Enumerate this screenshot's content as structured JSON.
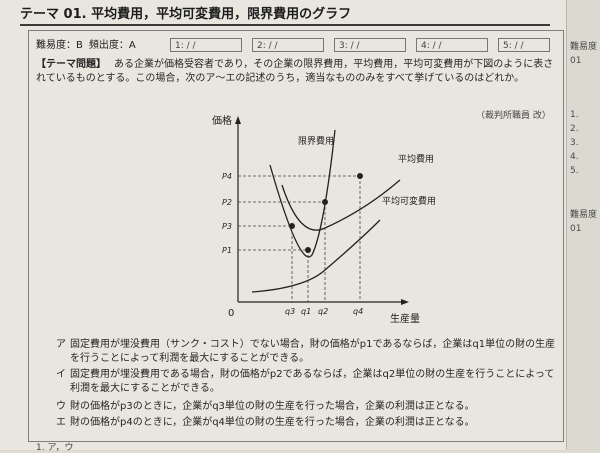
{
  "title": "テーマ 01. 平均費用，平均可変費用，限界費用のグラフ",
  "meta": {
    "difficulty_label": "難易度：B",
    "frequency_label": "頻出度：A",
    "check_boxes": [
      "1:  /  /",
      "2:  /  /",
      "3:  /  /",
      "4:  /  /",
      "5:  /  /"
    ]
  },
  "problem": {
    "tag": "【テーマ問題】",
    "text": "ある企業が価格受容者であり，その企業の限界費用，平均費用，平均可変費用が下図のように表されているものとする。この場合，次のア〜エの記述のうち，適当なもののみをすべて挙げているのはどれか。",
    "source": "（裁判所職員 改）"
  },
  "graph": {
    "y_axis_label": "価格",
    "x_axis_label": "生産量",
    "origin_label": "0",
    "curve_labels": {
      "mc": "限界費用",
      "ac": "平均費用",
      "avc": "平均可変費用"
    },
    "y_ticks": [
      "P4",
      "P2",
      "P3",
      "P1"
    ],
    "x_ticks": [
      "q3",
      "q1",
      "q2",
      "q4"
    ]
  },
  "choices": [
    {
      "label": "ア",
      "text": "固定費用が埋没費用（サンク・コスト）でない場合，財の価格がp1であるならば，企業はq1単位の財の生産を行うことによって利潤を最大にすることができる。"
    },
    {
      "label": "イ",
      "text": "固定費用が埋没費用である場合，財の価格がp2であるならば，企業はq2単位の財の生産を行うことによって利潤を最大にすることができる。"
    },
    {
      "label": "ウ",
      "text": "財の価格がp3のときに，企業がq3単位の財の生産を行った場合，企業の利潤は正となる。"
    },
    {
      "label": "エ",
      "text": "財の価格がp4のときに，企業がq4単位の財の生産を行った場合，企業の利潤は正となる。"
    }
  ],
  "footer": "1. ア，ウ",
  "right_page": [
    "難易度",
    "01",
    "1.",
    "2.",
    "3.",
    "4.",
    "5.",
    "難易度",
    "01"
  ],
  "colors": {
    "ink": "#262626",
    "paper": "#e9e6df"
  }
}
